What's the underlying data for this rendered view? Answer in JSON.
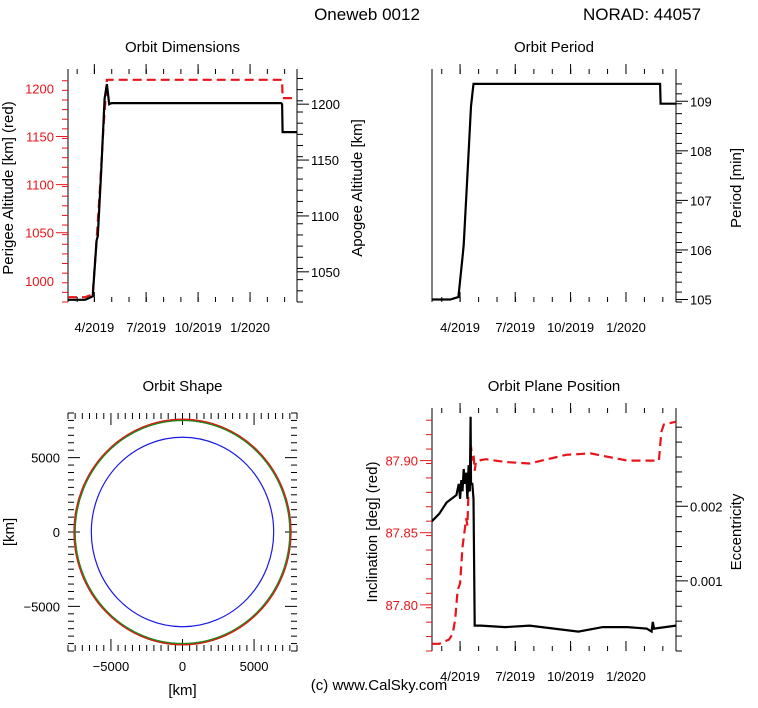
{
  "header": {
    "satellite": "Oneweb 0012",
    "norad": "NORAD: 44057"
  },
  "footer": {
    "credit": "(c) www.CalSky.com"
  },
  "colors": {
    "red": "#e8141a",
    "black": "#000000",
    "green": "#1a8a1a",
    "blue": "#1a1ae6"
  },
  "chart_data": [
    {
      "id": "dimensions",
      "type": "line",
      "title": "Orbit Dimensions",
      "ylabel_left": "Perigee Altitude [km] (red)",
      "ylabel_right": "Apogee Altitude [km]",
      "x_ticks": [
        "4/2019",
        "7/2019",
        "10/2019",
        "1/2020"
      ],
      "x_tick_values": [
        0.115,
        0.341,
        0.568,
        0.795
      ],
      "xlim": [
        0,
        1
      ],
      "left_ylim": [
        978,
        1215
      ],
      "left_ticks": [
        1050,
        1100,
        1150
      ],
      "left_tick_labels": [
        "1050",
        "1100",
        "1150"
      ],
      "left_partial_labels": [
        {
          "value": 1000,
          "label": "1000",
          "clip": "left"
        },
        {
          "value": 1200,
          "label": "1200",
          "clip": "left"
        }
      ],
      "right_ylim": [
        1023,
        1227
      ],
      "right_ticks": [
        1050,
        1100,
        1150,
        1200
      ],
      "right_tick_labels": [
        "1050",
        "1100",
        "1150",
        "1200"
      ],
      "series": [
        {
          "axis": "left",
          "color": "red",
          "dash": true,
          "x": [
            0.0,
            0.075,
            0.108,
            0.122,
            0.138,
            0.155,
            0.17,
            0.195,
            0.21,
            0.935,
            0.937,
            0.99,
            1.0
          ],
          "y": [
            983,
            983,
            986,
            1032,
            1090,
            1160,
            1209,
            1209,
            1209,
            1209,
            1190,
            1190,
            1190
          ]
        },
        {
          "axis": "right",
          "color": "black",
          "dash": false,
          "x": [
            0.0,
            0.075,
            0.108,
            0.125,
            0.13,
            0.145,
            0.16,
            0.17,
            0.18,
            0.19,
            0.93,
            0.935,
            0.937,
            1.0
          ],
          "y": [
            1025,
            1025,
            1028,
            1078,
            1082,
            1140,
            1205,
            1218,
            1200,
            1201,
            1201,
            1200,
            1175,
            1175
          ]
        }
      ]
    },
    {
      "id": "period",
      "type": "line",
      "title": "Orbit Period",
      "ylabel_right": "Period [min]",
      "x_ticks": [
        "4/2019",
        "7/2019",
        "10/2019",
        "1/2020"
      ],
      "x_tick_values": [
        0.115,
        0.341,
        0.568,
        0.795
      ],
      "xlim": [
        0,
        1
      ],
      "right_ylim": [
        104.95,
        109.55
      ],
      "right_ticks": [
        105,
        106,
        107,
        108,
        109
      ],
      "right_tick_labels": [
        "105",
        "106",
        "107",
        "108",
        "109"
      ],
      "series": [
        {
          "axis": "right",
          "color": "black",
          "dash": false,
          "x": [
            0.0,
            0.075,
            0.108,
            0.125,
            0.13,
            0.145,
            0.16,
            0.17,
            0.18,
            0.935,
            0.937,
            1.0
          ],
          "y": [
            105.0,
            105.0,
            105.05,
            105.85,
            106.1,
            107.5,
            108.9,
            109.35,
            109.35,
            109.35,
            108.95,
            108.95
          ]
        }
      ]
    },
    {
      "id": "shape",
      "type": "scatter",
      "title": "Orbit Shape",
      "xlabel": "[km]",
      "ylabel": "[km]",
      "xlim": [
        -8000,
        8000
      ],
      "ylim": [
        -8000,
        8000
      ],
      "x_ticks": [
        -5000,
        0,
        5000
      ],
      "x_tick_labels": [
        "−5000",
        "0",
        "5000"
      ],
      "y_ticks": [
        -5000,
        0,
        5000
      ],
      "y_tick_labels": [
        "−5000",
        "0",
        "5000"
      ],
      "circles": [
        {
          "name": "Earth",
          "radius": 6371,
          "color": "blue"
        },
        {
          "name": "orbit",
          "radius": 7540,
          "color": "green"
        },
        {
          "name": "orbit-outline",
          "radius": 7580,
          "color": "red"
        }
      ]
    },
    {
      "id": "plane",
      "type": "line",
      "title": "Orbit Plane Position",
      "ylabel_left": "Inclination [deg] (red)",
      "ylabel_right": "Eccentricity",
      "x_ticks": [
        "4/2019",
        "7/2019",
        "10/2019",
        "1/2020"
      ],
      "x_tick_values": [
        0.115,
        0.341,
        0.568,
        0.795
      ],
      "xlim": [
        0,
        1
      ],
      "left_ylim": [
        87.768,
        87.933
      ],
      "left_ticks": [
        87.8,
        87.85,
        87.9
      ],
      "left_tick_labels": [
        "87.80",
        "87.85",
        "87.90"
      ],
      "right_ylim": [
        6e-05,
        0.00325
      ],
      "right_ticks": [
        0.001,
        0.002
      ],
      "right_tick_labels": [
        "0.001",
        "0.002"
      ],
      "series": [
        {
          "axis": "left",
          "color": "red",
          "dash": true,
          "x": [
            0.0,
            0.03,
            0.07,
            0.085,
            0.095,
            0.105,
            0.115,
            0.125,
            0.14,
            0.145,
            0.15,
            0.155,
            0.16,
            0.165,
            0.17,
            0.175,
            0.18,
            0.19,
            0.22,
            0.3,
            0.4,
            0.55,
            0.65,
            0.8,
            0.9,
            0.93,
            0.935,
            0.94,
            0.95,
            1.0
          ],
          "y": [
            87.773,
            87.773,
            87.776,
            87.78,
            87.79,
            87.81,
            87.815,
            87.84,
            87.86,
            87.855,
            87.88,
            87.885,
            87.91,
            87.9,
            87.905,
            87.893,
            87.899,
            87.9,
            87.901,
            87.899,
            87.898,
            87.904,
            87.905,
            87.9,
            87.9,
            87.9,
            87.91,
            87.92,
            87.925,
            87.927
          ]
        },
        {
          "axis": "right",
          "color": "black",
          "dash": false,
          "x": [
            0.0,
            0.03,
            0.06,
            0.08,
            0.1,
            0.11,
            0.115,
            0.12,
            0.125,
            0.13,
            0.135,
            0.14,
            0.145,
            0.15,
            0.155,
            0.158,
            0.16,
            0.165,
            0.17,
            0.175,
            0.2,
            0.3,
            0.4,
            0.5,
            0.6,
            0.7,
            0.8,
            0.88,
            0.9,
            0.905,
            0.91,
            1.0
          ],
          "y": [
            0.0018,
            0.0019,
            0.00205,
            0.0021,
            0.00215,
            0.0023,
            0.0021,
            0.00235,
            0.0022,
            0.0025,
            0.0023,
            0.00245,
            0.0021,
            0.00255,
            0.0022,
            0.0032,
            0.0023,
            0.0023,
            0.0021,
            0.0004,
            0.0004,
            0.00038,
            0.0004,
            0.00036,
            0.00032,
            0.00038,
            0.00038,
            0.00036,
            0.00032,
            0.00045,
            0.00036,
            0.0004
          ]
        }
      ]
    }
  ]
}
